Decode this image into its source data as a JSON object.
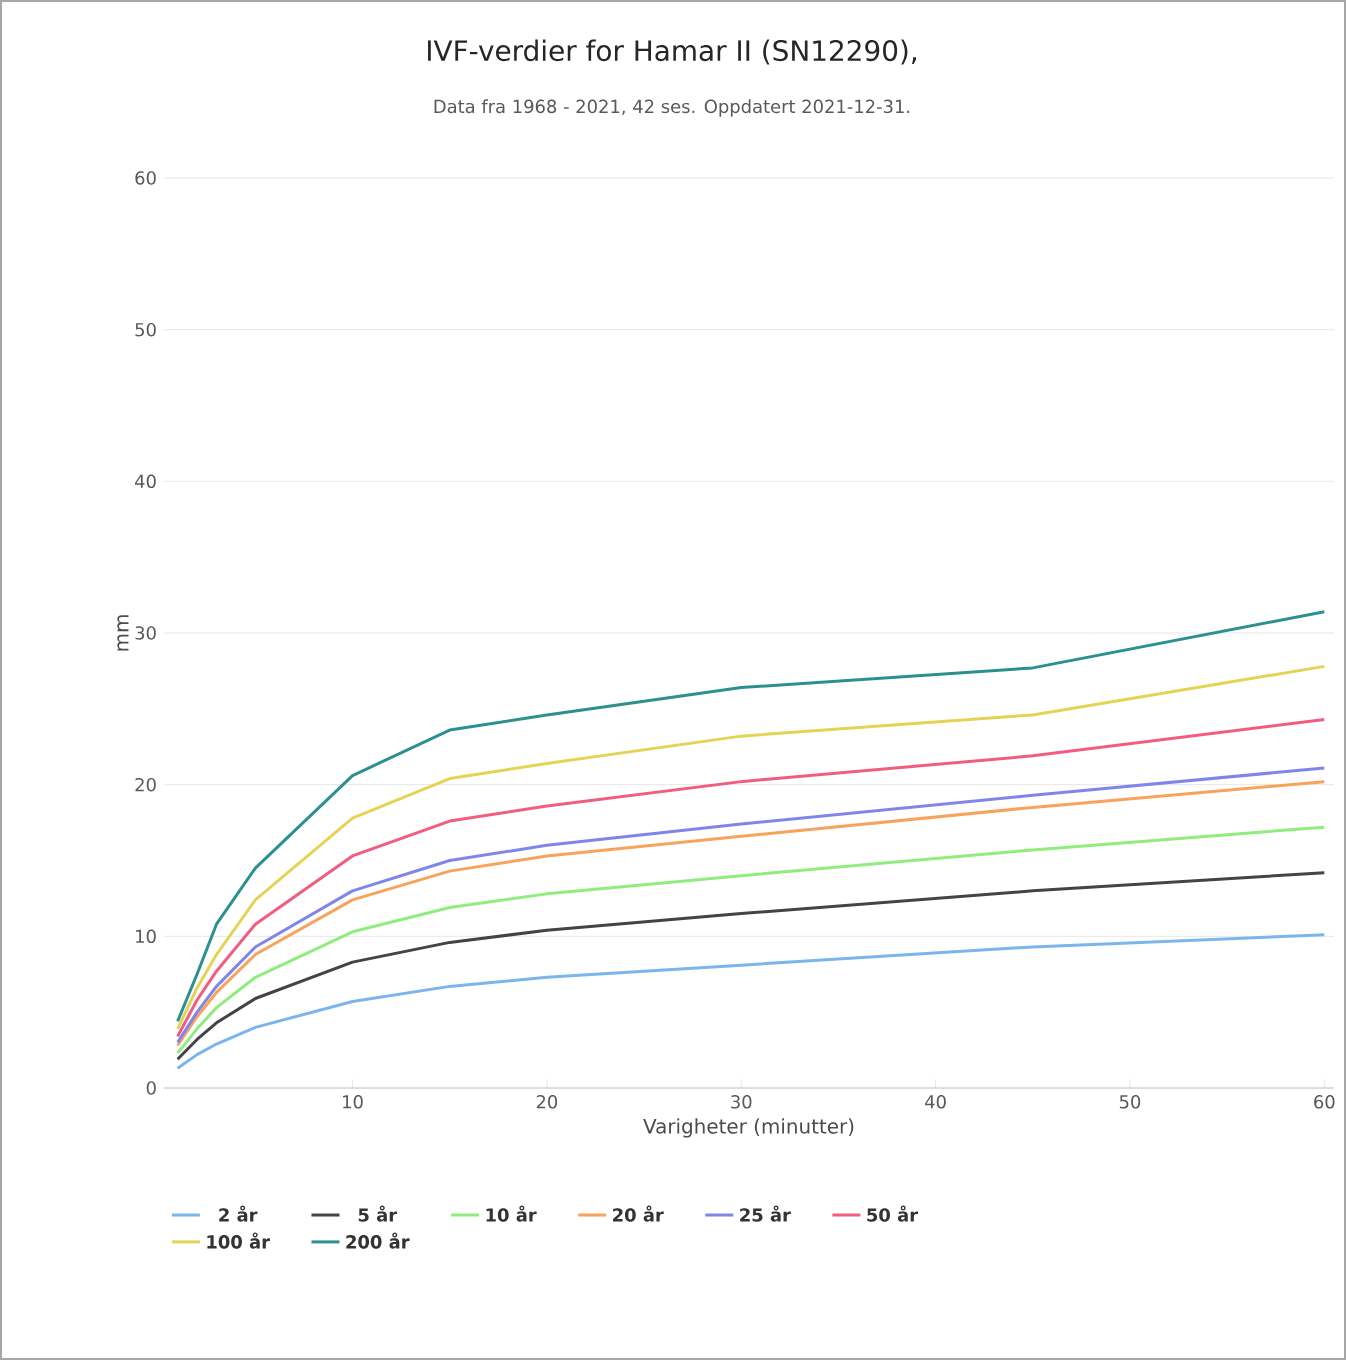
{
  "chart_data": {
    "type": "line",
    "title": "IVF-verdier for Hamar II (SN12290),",
    "subtitle": "Data fra 1968 - 2021, 42 ses. Oppdatert 2021-12-31.",
    "xlabel": "Varigheter (minutter)",
    "ylabel": "mm",
    "x": [
      1,
      2,
      3,
      5,
      10,
      15,
      20,
      30,
      45,
      60
    ],
    "xlim": [
      0.3,
      60.5
    ],
    "xticks": [
      10,
      20,
      30,
      40,
      50,
      60
    ],
    "ylim": [
      0,
      60
    ],
    "yticks": [
      0,
      10,
      20,
      30,
      40,
      50,
      60
    ],
    "grid": "y",
    "legend": "bottom",
    "marker": "none",
    "series": [
      {
        "name": "2 år",
        "color": "#7cb5ec",
        "values": [
          1.3,
          2.2,
          2.9,
          4.0,
          5.7,
          6.7,
          7.3,
          8.1,
          9.3,
          10.1
        ]
      },
      {
        "name": "5 år",
        "color": "#434348",
        "values": [
          1.9,
          3.2,
          4.3,
          5.9,
          8.3,
          9.6,
          10.4,
          11.5,
          13.0,
          14.2
        ]
      },
      {
        "name": "10 år",
        "color": "#90ed7d",
        "values": [
          2.3,
          3.9,
          5.3,
          7.3,
          10.3,
          11.9,
          12.8,
          14.0,
          15.7,
          17.2
        ]
      },
      {
        "name": "20 år",
        "color": "#f7a35c",
        "values": [
          2.8,
          4.7,
          6.3,
          8.8,
          12.4,
          14.3,
          15.3,
          16.6,
          18.5,
          20.2
        ]
      },
      {
        "name": "25 år",
        "color": "#8085e9",
        "values": [
          3.0,
          5.0,
          6.7,
          9.3,
          13.0,
          15.0,
          16.0,
          17.4,
          19.3,
          21.1
        ]
      },
      {
        "name": "50 år",
        "color": "#f15c80",
        "values": [
          3.4,
          5.8,
          7.7,
          10.8,
          15.3,
          17.6,
          18.6,
          20.2,
          21.9,
          24.3
        ]
      },
      {
        "name": "100 år",
        "color": "#e4d354",
        "values": [
          3.9,
          6.6,
          8.8,
          12.4,
          17.8,
          20.4,
          21.4,
          23.2,
          24.6,
          27.8
        ]
      },
      {
        "name": "200 år",
        "color": "#2b908f",
        "values": [
          4.4,
          7.5,
          10.8,
          14.5,
          20.6,
          23.6,
          24.6,
          26.4,
          27.7,
          31.4
        ]
      }
    ]
  }
}
